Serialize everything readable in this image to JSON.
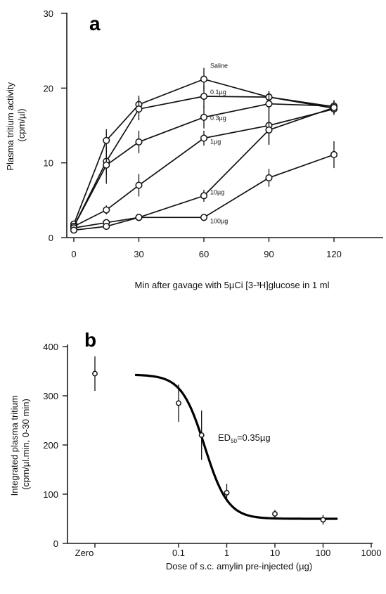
{
  "chart_data": [
    {
      "panel": "a",
      "type": "line",
      "ylabel_lines": [
        "Plasma tritium activity",
        "(cpm/µl)"
      ],
      "xlabel": "Min after gavage with 5µCi [3-³H]glucose in 1 ml",
      "xlim": [
        0,
        140
      ],
      "ylim": [
        0,
        30
      ],
      "xticks": [
        0,
        30,
        60,
        90,
        120
      ],
      "yticks": [
        0,
        10,
        20,
        30
      ],
      "x": [
        0,
        15,
        30,
        60,
        90,
        120
      ],
      "series": [
        {
          "name": "Saline",
          "values": [
            1.8,
            13.0,
            17.8,
            21.2,
            18.8,
            17.3
          ],
          "err": [
            0.3,
            1.5,
            1.2,
            1.5,
            0.8,
            0.8
          ]
        },
        {
          "name": "0.1µg",
          "values": [
            1.5,
            10.2,
            17.2,
            18.9,
            18.8,
            17.5
          ],
          "err": [
            0.3,
            1.8,
            1.5,
            1.5,
            0.8,
            0.8
          ]
        },
        {
          "name": "0.3µg",
          "values": [
            1.5,
            9.7,
            12.8,
            16.1,
            17.9,
            17.6
          ],
          "err": [
            0.3,
            2.5,
            1.5,
            1.5,
            1.5,
            0.8
          ]
        },
        {
          "name": "1µg",
          "values": [
            1.5,
            3.7,
            7.0,
            13.3,
            15.0,
            17.2
          ],
          "err": [
            0.3,
            0.6,
            1.5,
            1.0,
            2.5,
            0.8
          ]
        },
        {
          "name": "10µg",
          "values": [
            1.3,
            2.0,
            2.7,
            5.6,
            14.4,
            17.4
          ],
          "err": [
            0.3,
            0.4,
            0.4,
            0.8,
            2.0,
            0.8
          ]
        },
        {
          "name": "100µg",
          "values": [
            1.0,
            1.5,
            2.7,
            2.7,
            8.0,
            11.1
          ],
          "err": [
            0.3,
            0.3,
            0.4,
            0.4,
            1.2,
            1.8
          ]
        }
      ]
    },
    {
      "panel": "b",
      "type": "scatter",
      "ylabel_lines": [
        "Integrated plasma tritium",
        "(cpm/µl.min, 0-30 min)"
      ],
      "xlabel": "Dose of s.c. amylin pre-injected (µg)",
      "xscale": "log",
      "xticks": [
        {
          "value": 0.1,
          "label": "0.1"
        },
        {
          "value": 1,
          "label": "1"
        },
        {
          "value": 10,
          "label": "10"
        },
        {
          "value": 100,
          "label": "100"
        },
        {
          "value": 1000,
          "label": "1000"
        }
      ],
      "xzero_label": "Zero",
      "yticks": [
        0,
        100,
        200,
        300,
        400
      ],
      "ylim": [
        0,
        400
      ],
      "points": [
        {
          "x": "Zero",
          "y": 345,
          "err": 35
        },
        {
          "x": 0.1,
          "y": 285,
          "err": 38
        },
        {
          "x": 0.3,
          "y": 220,
          "err": 50
        },
        {
          "x": 1,
          "y": 103,
          "err": 18
        },
        {
          "x": 10,
          "y": 60,
          "err": 8
        },
        {
          "x": 100,
          "y": 48,
          "err": 10
        }
      ],
      "fit": {
        "top": 343,
        "bottom": 50,
        "ed50": 0.35,
        "hill": 1.8,
        "xrange": [
          0.0125,
          200
        ]
      },
      "annotation": {
        "prefix": "ED",
        "sub": "50",
        "suffix": "=0.35µg"
      }
    }
  ]
}
